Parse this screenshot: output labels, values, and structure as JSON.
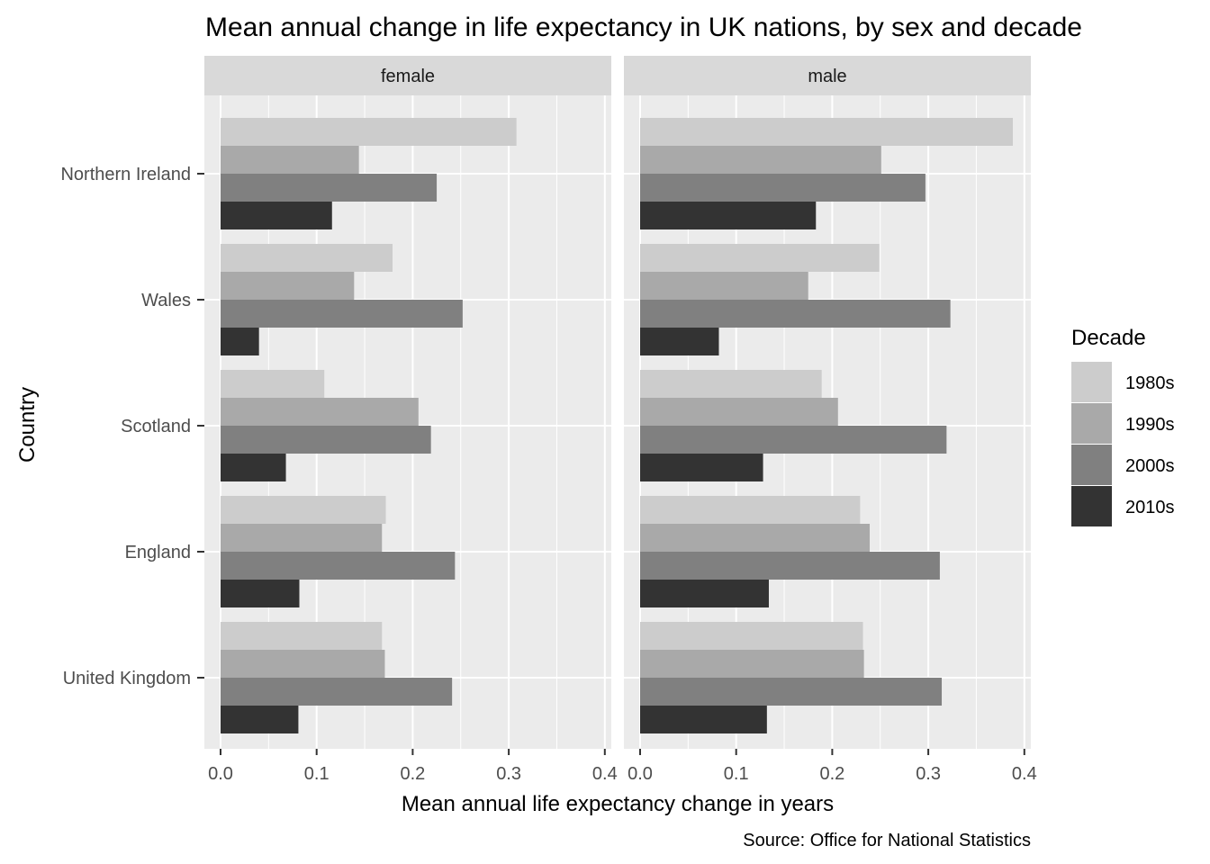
{
  "chart_data": {
    "type": "bar",
    "orientation": "horizontal",
    "title": "Mean annual change in life expectancy in UK nations, by sex and decade",
    "xlabel": "Mean annual life expectancy change in years",
    "ylabel": "Country",
    "caption": "Source: Office for National Statistics",
    "xlim": [
      0,
      0.4
    ],
    "x_ticks": [
      "0.0",
      "0.1",
      "0.2",
      "0.3",
      "0.4"
    ],
    "grid": true,
    "legend": {
      "title": "Decade",
      "position": "right",
      "entries": [
        "1980s",
        "1990s",
        "2000s",
        "2010s"
      ],
      "colors": [
        "#cccccc",
        "#a9a9a9",
        "#808080",
        "#333333"
      ]
    },
    "categories": [
      "Northern Ireland",
      "Wales",
      "Scotland",
      "England",
      "United Kingdom"
    ],
    "panels": [
      {
        "label": "female",
        "series": [
          {
            "name": "1980s",
            "values": [
              0.308,
              0.179,
              0.108,
              0.172,
              0.168
            ]
          },
          {
            "name": "1990s",
            "values": [
              0.144,
              0.139,
              0.206,
              0.168,
              0.171
            ]
          },
          {
            "name": "2000s",
            "values": [
              0.225,
              0.252,
              0.219,
              0.244,
              0.241
            ]
          },
          {
            "name": "2010s",
            "values": [
              0.116,
              0.04,
              0.068,
              0.082,
              0.081
            ]
          }
        ]
      },
      {
        "label": "male",
        "series": [
          {
            "name": "1980s",
            "values": [
              0.388,
              0.249,
              0.189,
              0.229,
              0.232
            ]
          },
          {
            "name": "1990s",
            "values": [
              0.251,
              0.175,
              0.206,
              0.239,
              0.233
            ]
          },
          {
            "name": "2000s",
            "values": [
              0.297,
              0.323,
              0.319,
              0.312,
              0.314
            ]
          },
          {
            "name": "2010s",
            "values": [
              0.183,
              0.082,
              0.128,
              0.134,
              0.132
            ]
          }
        ]
      }
    ]
  }
}
